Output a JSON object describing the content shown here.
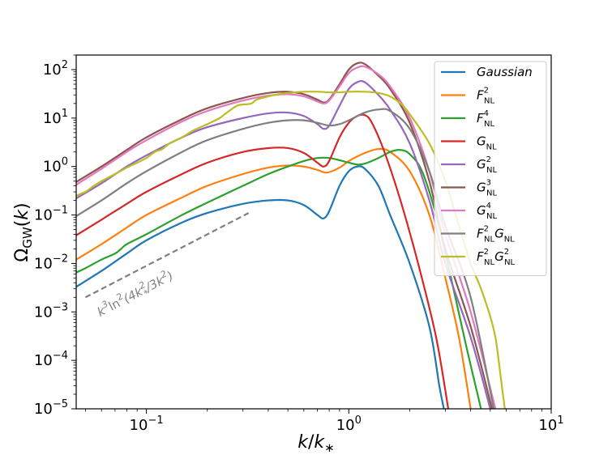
{
  "chart_data": {
    "type": "line",
    "xscale": "log",
    "yscale": "log",
    "xlim": [
      0.045,
      10
    ],
    "ylim": [
      1e-05,
      200
    ],
    "xlabel": "k/k*",
    "ylabel": "ΩGW(k)",
    "x_ticks": [
      {
        "value": 0.1,
        "base": "10",
        "exp": "−1"
      },
      {
        "value": 1,
        "base": "10",
        "exp": "0"
      },
      {
        "value": 10,
        "base": "10",
        "exp": "1"
      }
    ],
    "y_ticks": [
      {
        "value": 1e-05,
        "base": "10",
        "exp": "−5"
      },
      {
        "value": 0.0001,
        "base": "10",
        "exp": "−4"
      },
      {
        "value": 0.001,
        "base": "10",
        "exp": "−3"
      },
      {
        "value": 0.01,
        "base": "10",
        "exp": "−2"
      },
      {
        "value": 0.1,
        "base": "10",
        "exp": "−1"
      },
      {
        "value": 1,
        "base": "10",
        "exp": "0"
      },
      {
        "value": 10,
        "base": "10",
        "exp": "1"
      },
      {
        "value": 100,
        "base": "10",
        "exp": "2"
      }
    ],
    "legend_position": "top-right",
    "series": [
      {
        "name": "Gaussian",
        "label_main": "Gaussian",
        "label_sup": "",
        "label_sub": "",
        "label_main2": "",
        "label_sup2": "",
        "label_sub2": "",
        "color": "#1f77b4",
        "points": [
          [
            0.045,
            0.0033
          ],
          [
            0.06,
            0.007
          ],
          [
            0.08,
            0.016
          ],
          [
            0.1,
            0.03
          ],
          [
            0.15,
            0.07
          ],
          [
            0.2,
            0.11
          ],
          [
            0.3,
            0.17
          ],
          [
            0.4,
            0.2
          ],
          [
            0.5,
            0.2
          ],
          [
            0.6,
            0.16
          ],
          [
            0.7,
            0.1
          ],
          [
            0.75,
            0.085
          ],
          [
            0.8,
            0.12
          ],
          [
            0.9,
            0.4
          ],
          [
            1.0,
            0.8
          ],
          [
            1.1,
            1.0
          ],
          [
            1.2,
            0.9
          ],
          [
            1.4,
            0.4
          ],
          [
            1.6,
            0.1
          ],
          [
            2.0,
            0.01
          ],
          [
            2.5,
            0.0005
          ],
          [
            2.8,
            3e-05
          ],
          [
            2.95,
            1e-05
          ]
        ]
      },
      {
        "name": "F_NL^2",
        "label_main": "F",
        "label_sup": "2",
        "label_sub": "NL",
        "label_main2": "",
        "label_sup2": "",
        "label_sub2": "",
        "color": "#ff7f0e",
        "points": [
          [
            0.045,
            0.012
          ],
          [
            0.06,
            0.025
          ],
          [
            0.08,
            0.055
          ],
          [
            0.1,
            0.1
          ],
          [
            0.15,
            0.23
          ],
          [
            0.2,
            0.4
          ],
          [
            0.3,
            0.7
          ],
          [
            0.4,
            0.95
          ],
          [
            0.5,
            1.05
          ],
          [
            0.6,
            1.0
          ],
          [
            0.7,
            0.85
          ],
          [
            0.78,
            0.75
          ],
          [
            0.9,
            0.95
          ],
          [
            1.0,
            1.3
          ],
          [
            1.2,
            1.9
          ],
          [
            1.4,
            2.3
          ],
          [
            1.6,
            2.0
          ],
          [
            2.0,
            0.8
          ],
          [
            2.5,
            0.1
          ],
          [
            3.0,
            0.005
          ],
          [
            3.5,
            0.0003
          ],
          [
            4.0,
            1e-05
          ]
        ]
      },
      {
        "name": "F_NL^4",
        "label_main": "F",
        "label_sup": "4",
        "label_sub": "NL",
        "label_main2": "",
        "label_sup2": "",
        "label_sub2": "",
        "color": "#2ca02c",
        "points": [
          [
            0.045,
            0.0065
          ],
          [
            0.05,
            0.008
          ],
          [
            0.06,
            0.012
          ],
          [
            0.07,
            0.016
          ],
          [
            0.075,
            0.02
          ],
          [
            0.08,
            0.025
          ],
          [
            0.1,
            0.04
          ],
          [
            0.15,
            0.1
          ],
          [
            0.2,
            0.18
          ],
          [
            0.3,
            0.4
          ],
          [
            0.4,
            0.7
          ],
          [
            0.5,
            1.0
          ],
          [
            0.6,
            1.3
          ],
          [
            0.7,
            1.5
          ],
          [
            0.8,
            1.5
          ],
          [
            0.9,
            1.35
          ],
          [
            1.0,
            1.2
          ],
          [
            1.1,
            1.1
          ],
          [
            1.2,
            1.15
          ],
          [
            1.4,
            1.5
          ],
          [
            1.6,
            2.0
          ],
          [
            1.8,
            2.2
          ],
          [
            2.0,
            1.8
          ],
          [
            2.3,
            0.8
          ],
          [
            2.7,
            0.1
          ],
          [
            3.2,
            0.005
          ],
          [
            3.8,
            0.0002
          ],
          [
            4.5,
            1e-05
          ]
        ]
      },
      {
        "name": "G_NL",
        "label_main": "G",
        "label_sup": "",
        "label_sub": "NL",
        "label_main2": "",
        "label_sup2": "",
        "label_sub2": "",
        "color": "#d62728",
        "points": [
          [
            0.045,
            0.038
          ],
          [
            0.06,
            0.08
          ],
          [
            0.08,
            0.17
          ],
          [
            0.1,
            0.3
          ],
          [
            0.15,
            0.7
          ],
          [
            0.2,
            1.2
          ],
          [
            0.3,
            2.0
          ],
          [
            0.4,
            2.4
          ],
          [
            0.5,
            2.4
          ],
          [
            0.6,
            1.9
          ],
          [
            0.7,
            1.2
          ],
          [
            0.75,
            1.0
          ],
          [
            0.8,
            1.3
          ],
          [
            0.9,
            4.0
          ],
          [
            1.0,
            8.0
          ],
          [
            1.1,
            11.0
          ],
          [
            1.2,
            11.5
          ],
          [
            1.3,
            8.0
          ],
          [
            1.5,
            2.0
          ],
          [
            1.8,
            0.2
          ],
          [
            2.2,
            0.01
          ],
          [
            2.7,
            0.0003
          ],
          [
            3.1,
            1e-05
          ]
        ]
      },
      {
        "name": "G_NL^2",
        "label_main": "G",
        "label_sup": "2",
        "label_sub": "NL",
        "label_main2": "",
        "label_sup2": "",
        "label_sub2": "",
        "color": "#9467bd",
        "points": [
          [
            0.045,
            0.22
          ],
          [
            0.06,
            0.45
          ],
          [
            0.08,
            1.0
          ],
          [
            0.1,
            1.7
          ],
          [
            0.15,
            4.0
          ],
          [
            0.2,
            6.5
          ],
          [
            0.3,
            10.0
          ],
          [
            0.4,
            12.5
          ],
          [
            0.5,
            13.0
          ],
          [
            0.6,
            11.0
          ],
          [
            0.7,
            7.5
          ],
          [
            0.75,
            6.0
          ],
          [
            0.8,
            7.0
          ],
          [
            0.9,
            18.0
          ],
          [
            1.0,
            40.0
          ],
          [
            1.1,
            55.0
          ],
          [
            1.2,
            55.0
          ],
          [
            1.4,
            30.0
          ],
          [
            1.6,
            15.0
          ],
          [
            2.0,
            3.0
          ],
          [
            2.5,
            0.2
          ],
          [
            3.0,
            0.01
          ],
          [
            4.0,
            0.0003
          ],
          [
            5.0,
            1e-05
          ]
        ]
      },
      {
        "name": "G_NL^3",
        "label_main": "G",
        "label_sup": "3",
        "label_sub": "NL",
        "label_main2": "",
        "label_sup2": "",
        "label_sub2": "",
        "color": "#8c564b",
        "points": [
          [
            0.045,
            0.48
          ],
          [
            0.06,
            1.0
          ],
          [
            0.08,
            2.2
          ],
          [
            0.1,
            4.0
          ],
          [
            0.15,
            9.5
          ],
          [
            0.2,
            16.0
          ],
          [
            0.3,
            26.0
          ],
          [
            0.4,
            33.0
          ],
          [
            0.5,
            35.0
          ],
          [
            0.6,
            31.0
          ],
          [
            0.7,
            24.0
          ],
          [
            0.75,
            21.0
          ],
          [
            0.8,
            24.0
          ],
          [
            0.9,
            50.0
          ],
          [
            1.0,
            100.0
          ],
          [
            1.1,
            135.0
          ],
          [
            1.2,
            130.0
          ],
          [
            1.4,
            75.0
          ],
          [
            1.6,
            40.0
          ],
          [
            2.0,
            8.0
          ],
          [
            2.5,
            0.5
          ],
          [
            3.0,
            0.02
          ],
          [
            4.0,
            0.0005
          ],
          [
            5.1,
            1e-05
          ]
        ]
      },
      {
        "name": "G_NL^4",
        "label_main": "G",
        "label_sup": "4",
        "label_sub": "NL",
        "label_main2": "",
        "label_sup2": "",
        "label_sub2": "",
        "color": "#e377c2",
        "points": [
          [
            0.045,
            0.42
          ],
          [
            0.06,
            0.9
          ],
          [
            0.08,
            2.0
          ],
          [
            0.1,
            3.5
          ],
          [
            0.15,
            8.5
          ],
          [
            0.2,
            14.0
          ],
          [
            0.3,
            23.0
          ],
          [
            0.4,
            29.0
          ],
          [
            0.5,
            31.0
          ],
          [
            0.6,
            28.0
          ],
          [
            0.7,
            22.0
          ],
          [
            0.75,
            20.0
          ],
          [
            0.8,
            23.0
          ],
          [
            0.9,
            45.0
          ],
          [
            1.0,
            85.0
          ],
          [
            1.1,
            110.0
          ],
          [
            1.2,
            115.0
          ],
          [
            1.4,
            80.0
          ],
          [
            1.6,
            45.0
          ],
          [
            2.0,
            10.0
          ],
          [
            2.5,
            0.8
          ],
          [
            3.0,
            0.04
          ],
          [
            4.0,
            0.001
          ],
          [
            5.3,
            1e-05
          ]
        ]
      },
      {
        "name": "F_NL^2 G_NL",
        "label_main": "F",
        "label_sup": "2",
        "label_sub": "NL",
        "label_main2": "G",
        "label_sup2": "",
        "label_sub2": "NL",
        "color": "#7f7f7f",
        "points": [
          [
            0.045,
            0.095
          ],
          [
            0.06,
            0.2
          ],
          [
            0.08,
            0.45
          ],
          [
            0.1,
            0.8
          ],
          [
            0.15,
            2.0
          ],
          [
            0.2,
            3.5
          ],
          [
            0.3,
            6.0
          ],
          [
            0.4,
            8.0
          ],
          [
            0.5,
            9.0
          ],
          [
            0.6,
            9.0
          ],
          [
            0.7,
            8.0
          ],
          [
            0.8,
            7.0
          ],
          [
            0.9,
            7.5
          ],
          [
            1.0,
            9.0
          ],
          [
            1.2,
            13.0
          ],
          [
            1.4,
            15.0
          ],
          [
            1.6,
            14.0
          ],
          [
            2.0,
            6.0
          ],
          [
            2.5,
            0.8
          ],
          [
            3.0,
            0.06
          ],
          [
            4.0,
            0.002
          ],
          [
            5.2,
            1e-05
          ]
        ]
      },
      {
        "name": "F_NL^2 G_NL^2",
        "label_main": "F",
        "label_sup": "2",
        "label_sub": "NL",
        "label_main2": "G",
        "label_sup2": "2",
        "label_sub2": "NL",
        "color": "#bcbd22",
        "points": [
          [
            0.045,
            0.25
          ],
          [
            0.05,
            0.3
          ],
          [
            0.055,
            0.4
          ],
          [
            0.06,
            0.5
          ],
          [
            0.07,
            0.7
          ],
          [
            0.08,
            0.95
          ],
          [
            0.09,
            1.2
          ],
          [
            0.1,
            1.5
          ],
          [
            0.11,
            2.0
          ],
          [
            0.12,
            2.3
          ],
          [
            0.13,
            3.0
          ],
          [
            0.15,
            4.0
          ],
          [
            0.17,
            5.5
          ],
          [
            0.2,
            7.5
          ],
          [
            0.23,
            10.0
          ],
          [
            0.25,
            13.0
          ],
          [
            0.28,
            18.0
          ],
          [
            0.3,
            19.0
          ],
          [
            0.33,
            20.0
          ],
          [
            0.35,
            24.0
          ],
          [
            0.4,
            28.0
          ],
          [
            0.45,
            31.0
          ],
          [
            0.5,
            33.0
          ],
          [
            0.6,
            35.0
          ],
          [
            0.7,
            35.0
          ],
          [
            0.8,
            34.0
          ],
          [
            0.9,
            34.0
          ],
          [
            1.0,
            35.0
          ],
          [
            1.2,
            35.0
          ],
          [
            1.4,
            33.0
          ],
          [
            1.6,
            28.0
          ],
          [
            1.8,
            20.0
          ],
          [
            2.0,
            12.0
          ],
          [
            2.5,
            3.0
          ],
          [
            3.0,
            0.5
          ],
          [
            3.5,
            0.06
          ],
          [
            4.0,
            0.01
          ],
          [
            4.5,
            0.003
          ],
          [
            5.0,
            0.0008
          ],
          [
            5.3,
            0.0003
          ],
          [
            5.5,
            0.0001
          ],
          [
            5.7,
            3e-05
          ],
          [
            5.9,
            1e-05
          ]
        ]
      }
    ],
    "annotation": {
      "text_k": "k",
      "text_sup1": "3",
      "text_ln": "ln",
      "text_sup2": "2",
      "text_paren_open": "(4k",
      "text_sup3": "2",
      "text_sub3": "*",
      "text_slash": "/3k",
      "text_sup4": "2",
      "text_close": ")",
      "color": "#808080",
      "line_points": [
        [
          0.05,
          0.002
        ],
        [
          0.32,
          0.11
        ]
      ]
    }
  }
}
